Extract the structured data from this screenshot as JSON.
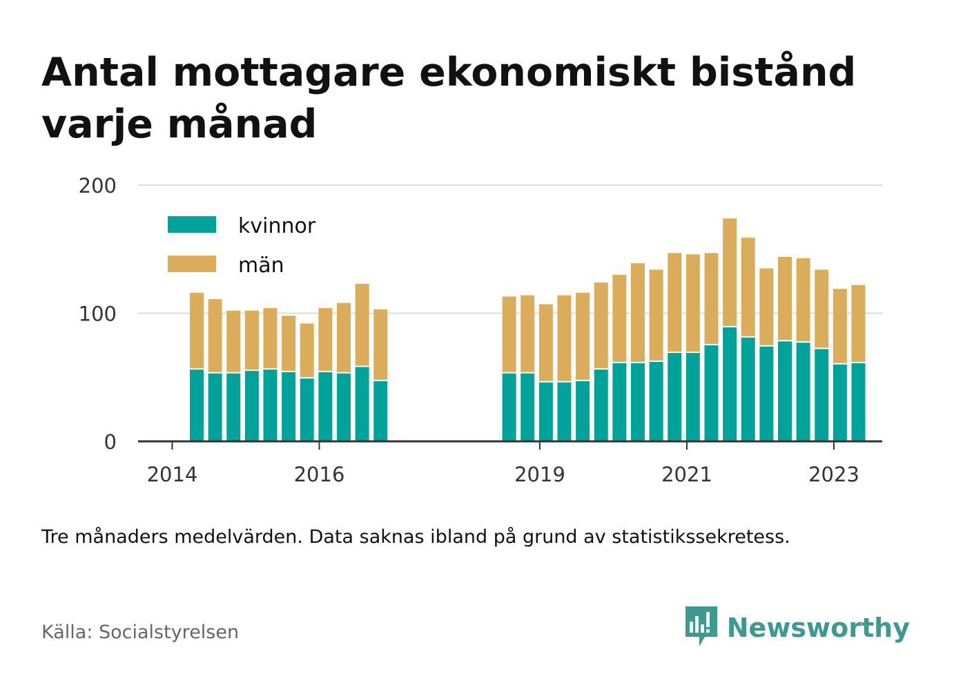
{
  "title": "Antal mottagare ekonomiskt bistånd varje månad",
  "note": "Tre månaders medelvärden. Data saknas ibland på grund av statistikssekretess.",
  "source": "Källa: Socialstyrelsen",
  "brand": {
    "name": "Newsworthy",
    "icon": "newsworthy-logo-icon",
    "color": "#3c9a91"
  },
  "colors": {
    "kvinnor": "#00a29a",
    "man": "#dbad5b",
    "grid": "#dddddd",
    "axis": "#333333"
  },
  "chart_data": {
    "type": "bar",
    "stacked": true,
    "ylim": [
      0,
      200
    ],
    "yticks": [
      0,
      100,
      200
    ],
    "xticks": [
      "2014",
      "2016",
      "2019",
      "2021",
      "2023"
    ],
    "grid": true,
    "legend_position": "top-left",
    "categories": [
      "2014-05",
      "2014-08",
      "2014-11",
      "2015-02",
      "2015-05",
      "2015-08",
      "2015-11",
      "2016-02",
      "2016-05",
      "2016-08",
      "2016-11",
      "2018-08",
      "2018-11",
      "2019-02",
      "2019-05",
      "2019-08",
      "2019-11",
      "2020-02",
      "2020-05",
      "2020-08",
      "2020-11",
      "2021-02",
      "2021-05",
      "2021-08",
      "2021-11",
      "2022-02",
      "2022-05",
      "2022-08",
      "2022-11",
      "2023-02",
      "2023-05"
    ],
    "series": [
      {
        "name": "kvinnor",
        "values": [
          56,
          53,
          53,
          55,
          56,
          54,
          49,
          54,
          53,
          58,
          47,
          53,
          53,
          46,
          46,
          47,
          56,
          61,
          61,
          62,
          69,
          69,
          75,
          89,
          81,
          74,
          78,
          77,
          72,
          60,
          61
        ]
      },
      {
        "name": "män",
        "values": [
          60,
          58,
          49,
          47,
          48,
          44,
          43,
          50,
          55,
          65,
          56,
          60,
          61,
          61,
          68,
          69,
          68,
          69,
          78,
          72,
          78,
          77,
          72,
          85,
          78,
          61,
          66,
          66,
          62,
          59,
          61
        ]
      }
    ]
  }
}
